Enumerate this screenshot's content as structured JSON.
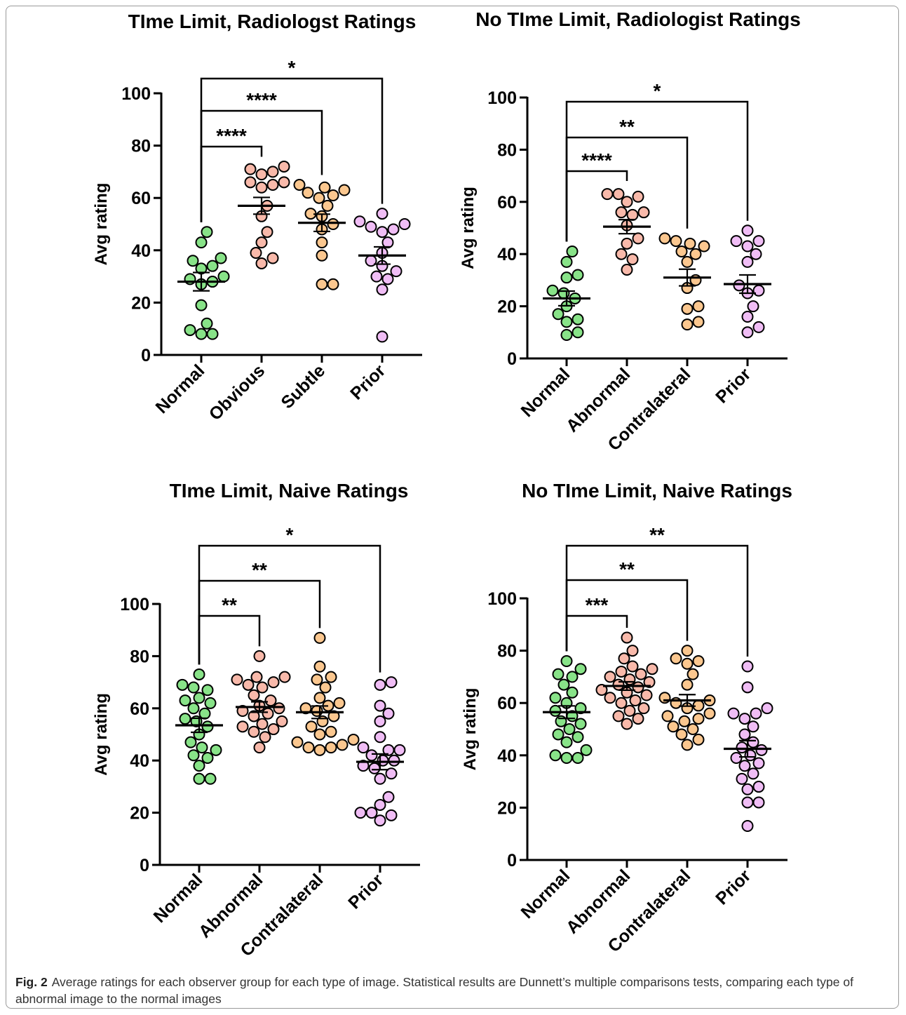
{
  "colors": {
    "normal": "#88e388",
    "abnormal": "#f8b9aa",
    "contralateral": "#fbc78f",
    "prior": "#f0bdf5",
    "stroke": "#000000"
  },
  "caption": {
    "label": "Fig. 2",
    "text": "Average ratings for each observer group for each type of image. Statistical results are Dunnett’s multiple comparisons tests, comparing each type of abnormal image to the normal images"
  },
  "chart_data": [
    {
      "type": "scatter",
      "title": "TIme Limit, Radiologst Ratings",
      "ylabel": "Avg rating",
      "ylim": [
        0,
        100
      ],
      "yticks": [
        0,
        20,
        40,
        60,
        80,
        100
      ],
      "categories": [
        "Normal",
        "Obvious",
        "Subtle",
        "Prior"
      ],
      "series": [
        {
          "values": [
            47,
            43,
            37,
            36,
            34,
            33,
            30,
            29,
            28,
            27,
            19,
            12,
            9.5,
            8,
            8
          ],
          "mean": 28,
          "sem": 3.5
        },
        {
          "values": [
            72,
            71,
            70,
            69,
            66,
            66,
            65,
            64,
            57,
            53,
            47,
            43,
            39,
            37,
            35
          ],
          "mean": 57,
          "sem": 3.2
        },
        {
          "values": [
            65,
            64,
            63,
            62,
            61,
            60,
            57,
            54,
            53,
            50,
            48,
            43,
            38,
            27,
            27
          ],
          "mean": 50.5,
          "sem": 3.3
        },
        {
          "values": [
            54,
            51,
            50,
            49,
            48,
            47,
            43,
            39,
            36,
            34,
            32,
            30,
            29,
            25,
            7
          ],
          "mean": 38,
          "sem": 3.3
        }
      ],
      "comparisons": [
        {
          "to": 1,
          "label": "****"
        },
        {
          "to": 2,
          "label": "****"
        },
        {
          "to": 3,
          "label": "*"
        }
      ]
    },
    {
      "type": "scatter",
      "title": "No TIme Limit, Radiologist Ratings",
      "ylabel": "Avg rating",
      "ylim": [
        0,
        100
      ],
      "yticks": [
        0,
        20,
        40,
        60,
        80,
        100
      ],
      "categories": [
        "Normal",
        "Abnormal",
        "Contralateral",
        "Prior"
      ],
      "series": [
        {
          "values": [
            41,
            37,
            32,
            31,
            26,
            25,
            23,
            20,
            17,
            15,
            14,
            10,
            9
          ],
          "mean": 23,
          "sem": 2.8
        },
        {
          "values": [
            63,
            63,
            62,
            60,
            56,
            56,
            55,
            51,
            46,
            44,
            40,
            38,
            34
          ],
          "mean": 50.5,
          "sem": 2.7
        },
        {
          "values": [
            46,
            45,
            44,
            43,
            41,
            40,
            37,
            30,
            27,
            20,
            19,
            14,
            13
          ],
          "mean": 31,
          "sem": 3.2
        },
        {
          "values": [
            49,
            45,
            45,
            43,
            40,
            37,
            28,
            26,
            25,
            20,
            16,
            12,
            10
          ],
          "mean": 28.5,
          "sem": 3.5
        }
      ],
      "comparisons": [
        {
          "to": 1,
          "label": "****"
        },
        {
          "to": 2,
          "label": "**"
        },
        {
          "to": 3,
          "label": "*"
        }
      ]
    },
    {
      "type": "scatter",
      "title": "TIme Limit, Naive Ratings",
      "ylabel": "Avg rating",
      "ylim": [
        0,
        100
      ],
      "yticks": [
        0,
        20,
        40,
        60,
        80,
        100
      ],
      "categories": [
        "Normal",
        "Abnormal",
        "Contralateral",
        "Prior"
      ],
      "series": [
        {
          "values": [
            73,
            69,
            68,
            67,
            64,
            63,
            62,
            60,
            58,
            56,
            55,
            53,
            50,
            47,
            45,
            44,
            42,
            41,
            38,
            33,
            33
          ],
          "mean": 53.5,
          "sem": 2.7
        },
        {
          "values": [
            80,
            72,
            72,
            71,
            70,
            69,
            68,
            65,
            63,
            61,
            60,
            59,
            58,
            57,
            55,
            54,
            53,
            52,
            51,
            49,
            45
          ],
          "mean": 60.5,
          "sem": 2.0
        },
        {
          "values": [
            87,
            76,
            72,
            71,
            68,
            64,
            62,
            61,
            60,
            59,
            57,
            55,
            53,
            51,
            50,
            48,
            47,
            46,
            45,
            45,
            44
          ],
          "mean": 58.5,
          "sem": 2.4
        },
        {
          "values": [
            70,
            69,
            61,
            58,
            55,
            49,
            45,
            44,
            44,
            42,
            40,
            40,
            38,
            37,
            35,
            33,
            26,
            23,
            20,
            20,
            19,
            17
          ],
          "mean": 39.5,
          "sem": 3.0
        }
      ],
      "comparisons": [
        {
          "to": 1,
          "label": "**"
        },
        {
          "to": 2,
          "label": "**"
        },
        {
          "to": 3,
          "label": "*"
        }
      ]
    },
    {
      "type": "scatter",
      "title": "No TIme Limit, Naive Ratings",
      "ylabel": "Avg rating",
      "ylim": [
        0,
        100
      ],
      "yticks": [
        0,
        20,
        40,
        60,
        80,
        100
      ],
      "categories": [
        "Normal",
        "Abnormal",
        "Contralateral",
        "Prior"
      ],
      "series": [
        {
          "values": [
            76,
            73,
            71,
            70,
            67,
            64,
            62,
            60,
            58,
            57,
            55,
            53,
            52,
            50,
            48,
            47,
            45,
            42,
            40,
            39,
            39
          ],
          "mean": 56.5,
          "sem": 2.4
        },
        {
          "values": [
            85,
            80,
            77,
            74,
            73,
            72,
            71,
            70,
            69,
            68,
            67,
            66,
            65,
            64,
            63,
            62,
            61,
            60,
            58,
            57,
            55,
            54,
            52
          ],
          "mean": 66.5,
          "sem": 1.6
        },
        {
          "values": [
            80,
            77,
            76,
            75,
            71,
            67,
            62,
            61,
            60,
            59,
            58,
            56,
            55,
            54,
            53,
            51,
            50,
            48,
            46,
            44
          ],
          "mean": 61,
          "sem": 2.2
        },
        {
          "values": [
            74,
            66,
            58,
            56,
            56,
            54,
            51,
            48,
            45,
            43,
            42,
            40,
            39,
            37,
            36,
            33,
            31,
            28,
            27,
            22,
            22,
            13
          ],
          "mean": 42.5,
          "sem": 3.1
        }
      ],
      "comparisons": [
        {
          "to": 1,
          "label": "***"
        },
        {
          "to": 2,
          "label": "**"
        },
        {
          "to": 3,
          "label": "**"
        }
      ]
    }
  ]
}
